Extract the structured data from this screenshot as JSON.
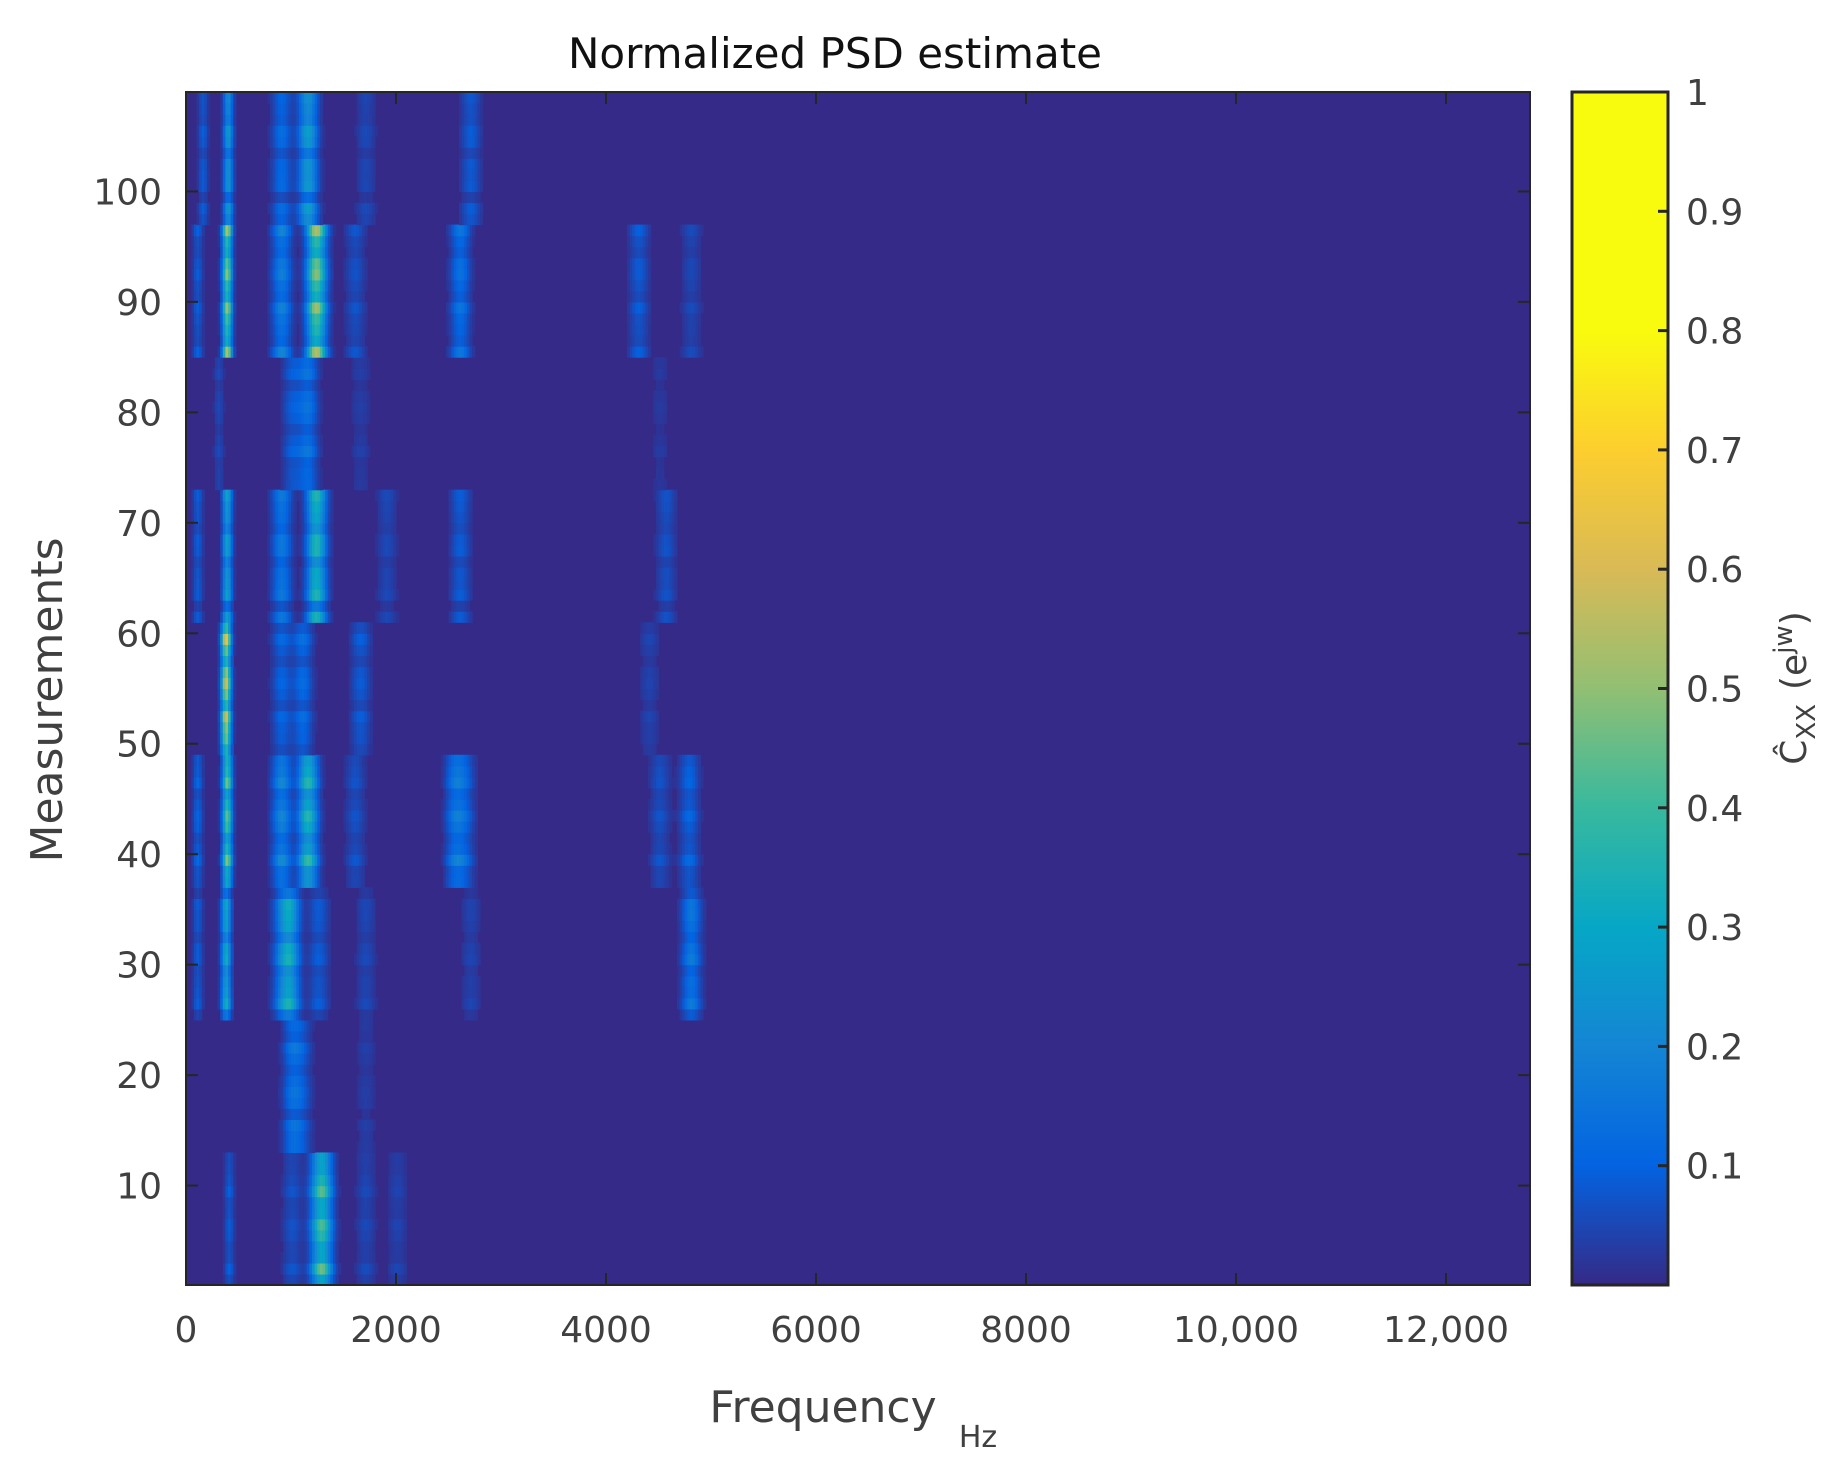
{
  "chart_data": {
    "type": "heatmap",
    "title": "Normalized PSD estimate",
    "xlabel": "Frequency",
    "xlabel_unit": "Hz",
    "ylabel": "Measurements",
    "colorbar_label": {
      "base": "Ĉ",
      "subscript": "XX",
      "paren_open": "(e",
      "superscript": "jw",
      "paren_close": ")"
    },
    "colormap": "parula",
    "colors": {
      "background": "#352a87",
      "axis": "#262626"
    },
    "xlim": [
      0,
      12800
    ],
    "ylim": [
      1,
      109
    ],
    "clim": [
      0,
      1
    ],
    "x_ticks": [
      0,
      2000,
      4000,
      6000,
      8000,
      10000,
      12000
    ],
    "x_tick_labels": [
      "0",
      "2000",
      "4000",
      "6000",
      "8000",
      "10,000",
      "12,000"
    ],
    "y_ticks": [
      10,
      20,
      30,
      40,
      50,
      60,
      70,
      80,
      90,
      100
    ],
    "y_tick_labels": [
      "10",
      "20",
      "30",
      "40",
      "50",
      "60",
      "70",
      "80",
      "90",
      "100"
    ],
    "colorbar_ticks": [
      0.1,
      0.2,
      0.3,
      0.4,
      0.5,
      0.6,
      0.7,
      0.8,
      0.9,
      1
    ],
    "colorbar_tick_labels": [
      "0.1",
      "0.2",
      "0.3",
      "0.4",
      "0.5",
      "0.6",
      "0.7",
      "0.8",
      "0.9",
      "1"
    ],
    "blocks": [
      {
        "y": [
          1,
          13
        ],
        "peaks": [
          [
            400,
            0.1
          ],
          [
            1000,
            0.08
          ],
          [
            1250,
            0.22
          ],
          [
            1300,
            0.28
          ],
          [
            1700,
            0.06
          ],
          [
            2000,
            0.05
          ]
        ]
      },
      {
        "y": [
          13,
          25
        ],
        "peaks": [
          [
            1000,
            0.14
          ],
          [
            1100,
            0.08
          ],
          [
            1700,
            0.04
          ]
        ]
      },
      {
        "y": [
          25,
          37
        ],
        "peaks": [
          [
            100,
            0.1
          ],
          [
            370,
            0.35
          ],
          [
            900,
            0.14
          ],
          [
            980,
            0.3
          ],
          [
            1250,
            0.1
          ],
          [
            1700,
            0.06
          ],
          [
            2700,
            0.05
          ],
          [
            4800,
            0.18
          ]
        ]
      },
      {
        "y": [
          37,
          49
        ],
        "peaks": [
          [
            100,
            0.12
          ],
          [
            380,
            0.5
          ],
          [
            900,
            0.22
          ],
          [
            1150,
            0.4
          ],
          [
            1600,
            0.08
          ],
          [
            2550,
            0.16
          ],
          [
            2650,
            0.1
          ],
          [
            4500,
            0.08
          ],
          [
            4780,
            0.12
          ]
        ]
      },
      {
        "y": [
          49,
          61
        ],
        "peaks": [
          [
            370,
            0.65
          ],
          [
            900,
            0.12
          ],
          [
            1100,
            0.14
          ],
          [
            1650,
            0.1
          ],
          [
            4400,
            0.05
          ]
        ]
      },
      {
        "y": [
          61,
          73
        ],
        "peaks": [
          [
            100,
            0.1
          ],
          [
            380,
            0.32
          ],
          [
            900,
            0.18
          ],
          [
            1230,
            0.4
          ],
          [
            1900,
            0.06
          ],
          [
            2600,
            0.1
          ],
          [
            4560,
            0.08
          ]
        ]
      },
      {
        "y": [
          73,
          85
        ],
        "peaks": [
          [
            300,
            0.06
          ],
          [
            1000,
            0.1
          ],
          [
            1150,
            0.16
          ],
          [
            1650,
            0.04
          ],
          [
            4500,
            0.03
          ]
        ]
      },
      {
        "y": [
          85,
          97
        ],
        "peaks": [
          [
            100,
            0.1
          ],
          [
            380,
            0.55
          ],
          [
            900,
            0.2
          ],
          [
            1230,
            0.55
          ],
          [
            1600,
            0.08
          ],
          [
            2600,
            0.16
          ],
          [
            4300,
            0.1
          ],
          [
            4800,
            0.06
          ]
        ]
      },
      {
        "y": [
          97,
          109
        ],
        "peaks": [
          [
            150,
            0.1
          ],
          [
            390,
            0.28
          ],
          [
            900,
            0.14
          ],
          [
            1150,
            0.3
          ],
          [
            1700,
            0.06
          ],
          [
            2700,
            0.1
          ]
        ]
      }
    ]
  }
}
